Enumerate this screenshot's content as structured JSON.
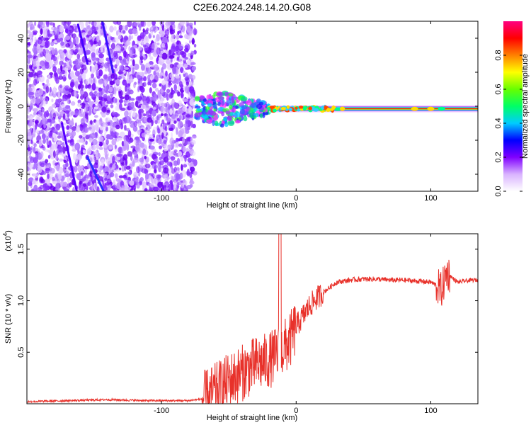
{
  "figure": {
    "title": "C2E6.2024.248.14.20.G08"
  },
  "chart_data": [
    {
      "type": "heatmap",
      "xlabel": "Height of straight line (km)",
      "ylabel": "Frequency (Hz)",
      "xlim": [
        -200,
        135
      ],
      "ylim": [
        -50,
        50
      ],
      "xticks": [
        -100,
        0,
        100
      ],
      "yticks": [
        -40,
        -20,
        0,
        20,
        40
      ],
      "colorbar": {
        "label": "Normalized spectral amplitude",
        "range": [
          0,
          1
        ],
        "ticks": [
          "0.0",
          "0.2",
          "0.4",
          "0.6",
          "0.8"
        ],
        "colors": [
          "#ffffff",
          "#d9b3ff",
          "#8000ff",
          "#0000ff",
          "#00ccff",
          "#00ff66",
          "#66ff00",
          "#ffff00",
          "#ff8000",
          "#ff0000",
          "#ff0080"
        ]
      },
      "features": {
        "noise_region_x": [
          -200,
          -75
        ],
        "transition_region_x": [
          -75,
          -20
        ],
        "signal_line_x": [
          -20,
          135
        ],
        "signal_line_freq": -1.5
      }
    },
    {
      "type": "line",
      "xlabel": "Height of straight line (km)",
      "ylabel": "SNR (10 * v/v)",
      "scale_label": "(x10",
      "scale_exp": "4",
      "xlim": [
        -200,
        135
      ],
      "ylim": [
        0,
        1.65
      ],
      "xticks": [
        -100,
        0,
        100
      ],
      "yticks": [
        "0.5",
        "1.0",
        "1.5"
      ],
      "line_color": "#e8312a",
      "profile": {
        "x": [
          -200,
          -140,
          -110,
          -80,
          -68,
          -60,
          -50,
          -40,
          -30,
          -20,
          -12,
          -5,
          0,
          5,
          10,
          15,
          20,
          25,
          30,
          40,
          50,
          60,
          70,
          80,
          90,
          100,
          104,
          108,
          112,
          116,
          120,
          130,
          135
        ],
        "y": [
          0.02,
          0.04,
          0.03,
          0.03,
          0.05,
          0.12,
          0.22,
          0.3,
          0.38,
          0.42,
          0.5,
          0.6,
          0.75,
          0.85,
          0.95,
          1.02,
          1.08,
          1.13,
          1.18,
          1.2,
          1.21,
          1.21,
          1.2,
          1.2,
          1.19,
          1.18,
          1.15,
          1.1,
          1.28,
          1.22,
          1.18,
          1.2,
          1.2
        ]
      }
    }
  ]
}
